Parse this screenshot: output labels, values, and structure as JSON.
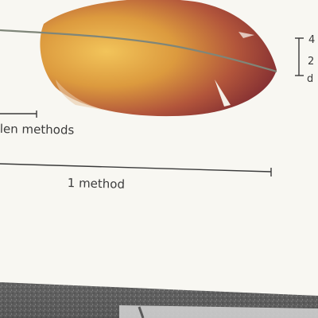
{
  "labels": {
    "short_scale": "len methods",
    "long_scale": "1 method",
    "side_1": "4",
    "side_2": "2",
    "side_3": "d"
  },
  "colors": {
    "background": "#f8f7f2",
    "feather_tip": "#6e1f2f",
    "feather_mid": "#a8453a",
    "feather_base": "#e3a83c",
    "shaft": "#8a8f84",
    "scale_line": "#3a3a3a",
    "floor_dark": "#5a5a5a",
    "floor_light": "#c8c8c8"
  }
}
